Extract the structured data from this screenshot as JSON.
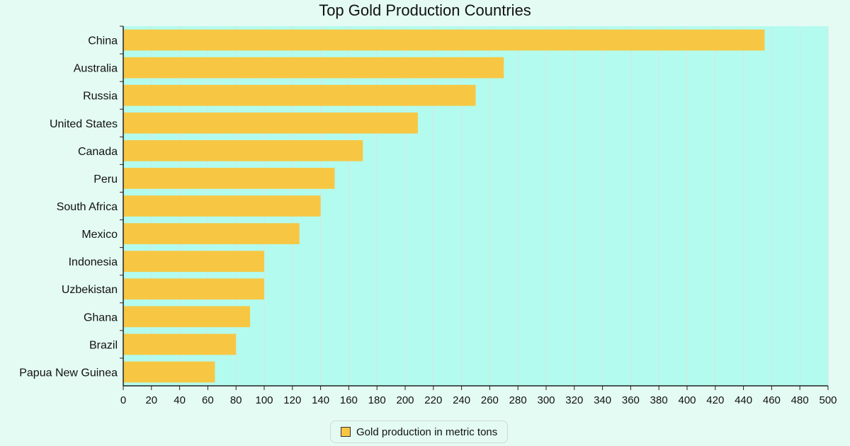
{
  "chart_data": {
    "type": "bar",
    "orientation": "horizontal",
    "title": "Top Gold Production Countries",
    "categories": [
      "China",
      "Australia",
      "Russia",
      "United States",
      "Canada",
      "Peru",
      "South Africa",
      "Mexico",
      "Indonesia",
      "Uzbekistan",
      "Ghana",
      "Brazil",
      "Papua New Guinea"
    ],
    "series": [
      {
        "name": "Gold production in metric tons",
        "values": [
          455,
          270,
          250,
          209,
          170,
          150,
          140,
          125,
          100,
          100,
          90,
          80,
          65
        ],
        "color": "#f7c744"
      }
    ],
    "xlim": [
      0,
      500
    ],
    "x_ticks": [
      0,
      20,
      40,
      60,
      80,
      100,
      120,
      140,
      160,
      180,
      200,
      220,
      240,
      260,
      280,
      300,
      320,
      340,
      360,
      380,
      400,
      420,
      440,
      460,
      480,
      500
    ],
    "grid": true,
    "legend_position": "bottom-center",
    "colors": {
      "page_background": "#e4fbf3",
      "plot_background": "#b3fbee",
      "bar": "#f7c744",
      "gridline": "#d9e4e0",
      "axis": "#222222"
    }
  }
}
